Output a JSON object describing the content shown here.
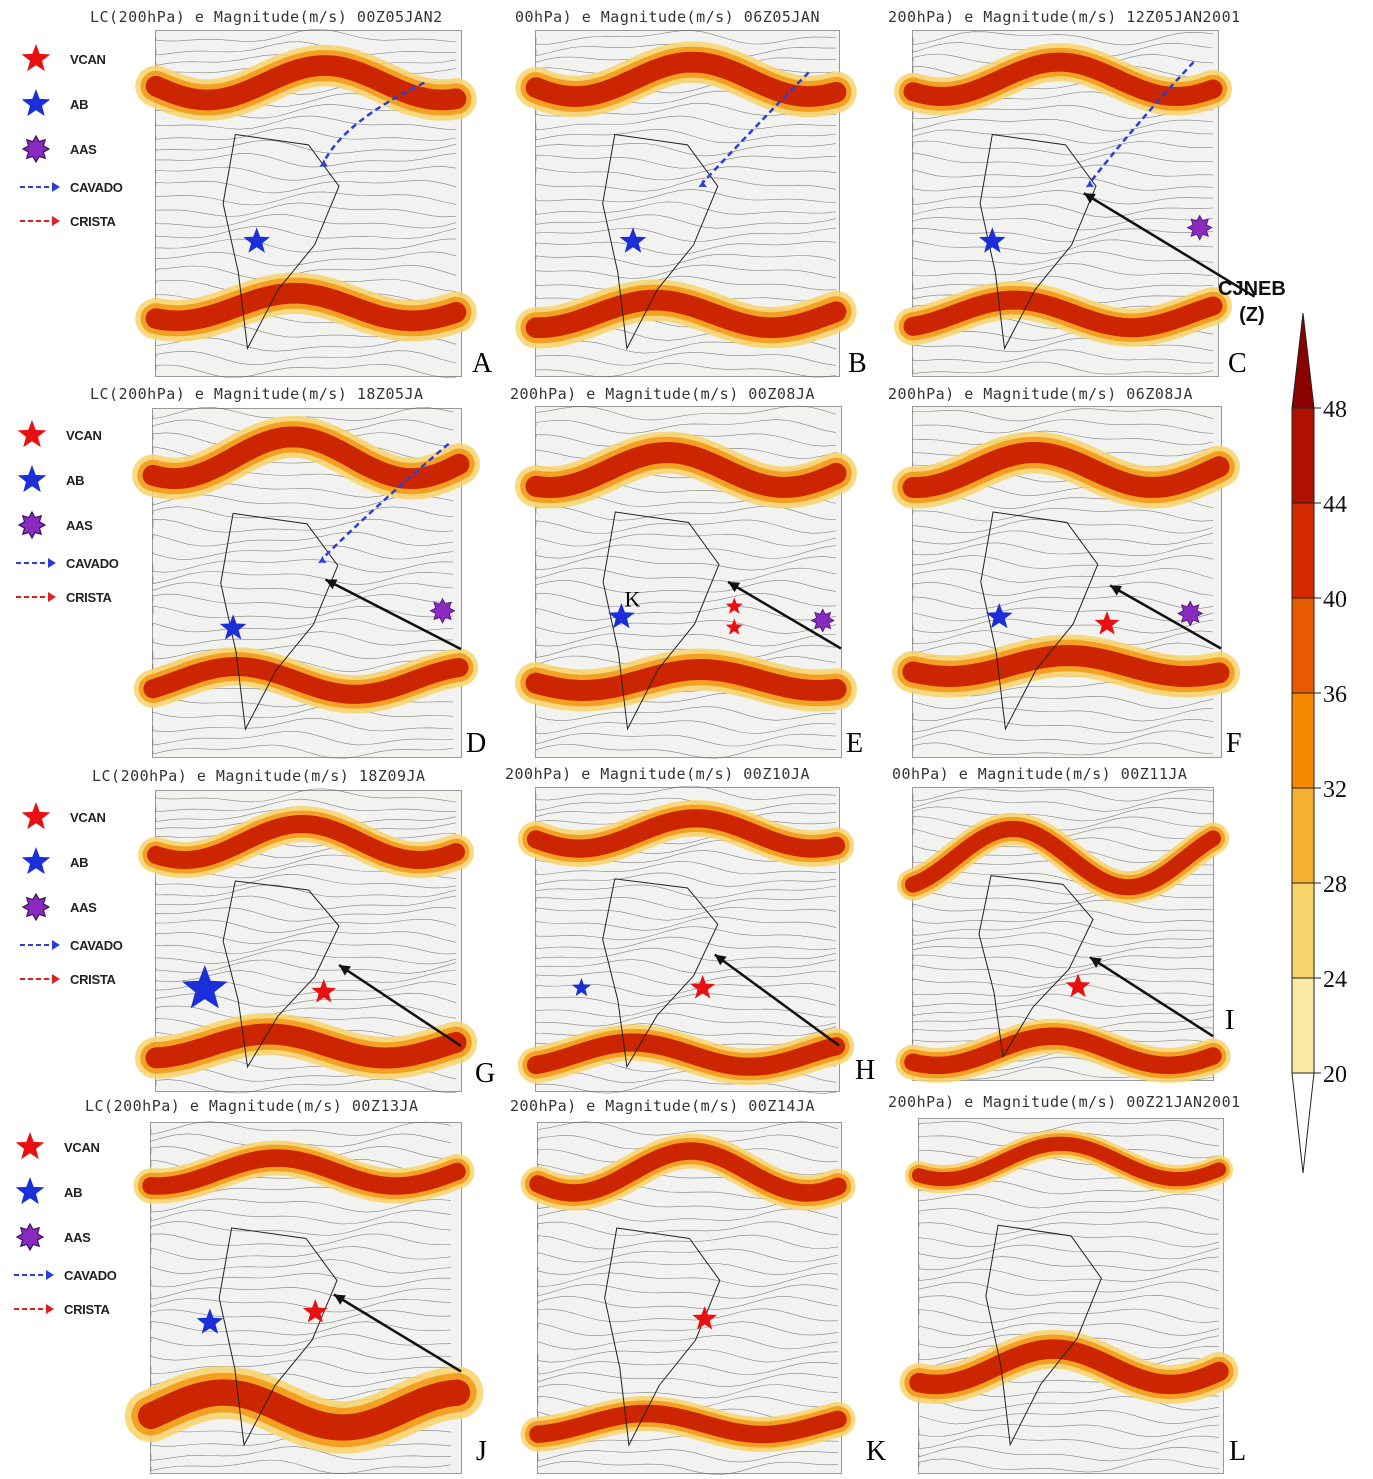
{
  "panels": [
    {
      "id": "A",
      "title": "LC(200hPa) e Magnitude(m/s) 00Z05JAN2",
      "label": "A"
    },
    {
      "id": "B",
      "title": "00hPa) e Magnitude(m/s) 06Z05JAN",
      "label": "B"
    },
    {
      "id": "C",
      "title": "200hPa) e Magnitude(m/s) 12Z05JAN2001",
      "label": "C"
    },
    {
      "id": "D",
      "title": "LC(200hPa) e Magnitude(m/s) 18Z05JA",
      "label": "D"
    },
    {
      "id": "E",
      "title": "200hPa) e Magnitude(m/s) 00Z08JA",
      "label": "E"
    },
    {
      "id": "F",
      "title": "200hPa) e Magnitude(m/s) 06Z08JA",
      "label": "F"
    },
    {
      "id": "G",
      "title": "LC(200hPa) e Magnitude(m/s) 18Z09JA",
      "label": "G"
    },
    {
      "id": "H",
      "title": "200hPa) e Magnitude(m/s) 00Z10JA",
      "label": "H"
    },
    {
      "id": "I",
      "title": "00hPa) e Magnitude(m/s) 00Z11JA",
      "label": "I"
    },
    {
      "id": "J",
      "title": "LC(200hPa) e Magnitude(m/s) 00Z13JA",
      "label": "J"
    },
    {
      "id": "K",
      "title": "200hPa) e Magnitude(m/s) 00Z14JA",
      "label": "K"
    },
    {
      "id": "L",
      "title": "200hPa) e Magnitude(m/s) 00Z21JAN2001",
      "label": "L"
    }
  ],
  "legend": {
    "vcan": "VCAN",
    "ab": "AB",
    "aas": "AAS",
    "cavado": "CAVADO",
    "crista": "CRISTA"
  },
  "annotations": {
    "cjneb_line1": "CJNEB",
    "cjneb_line2": "(Z)",
    "panel_e_marker": "K"
  },
  "colorbar": {
    "ticks": [
      "48",
      "44",
      "40",
      "36",
      "32",
      "28",
      "24",
      "20"
    ],
    "colors": [
      "#8b0000",
      "#b01000",
      "#d42c00",
      "#e85a00",
      "#f58a00",
      "#f6b030",
      "#f8d36a",
      "#fbe9a6"
    ]
  },
  "colors": {
    "vcan_star": "#e81010",
    "ab_star": "#1a2fd8",
    "aas_star": "#8a2bbf",
    "cavado_arrow": "#2b3fd8",
    "crista_arrow": "#e02020"
  }
}
